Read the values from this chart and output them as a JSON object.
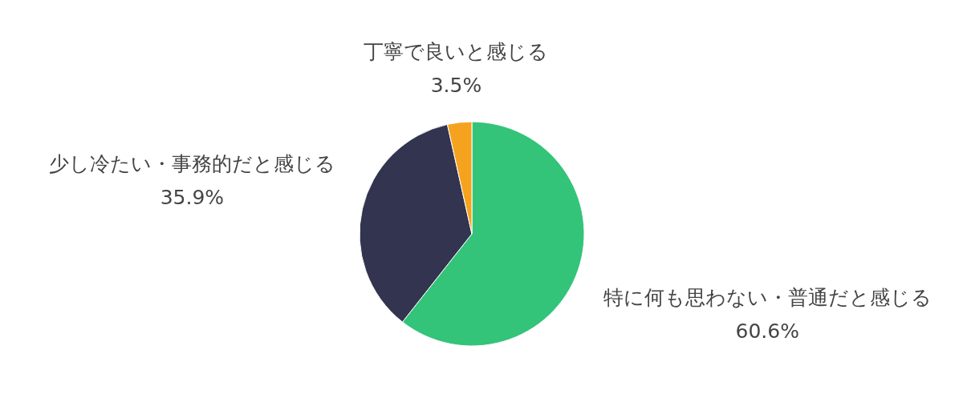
{
  "chart_data": {
    "type": "pie",
    "categories": [
      "特に何も思わない・普通だと感じる",
      "少し冷たい・事務的だと感じる",
      "丁寧で良いと感じる"
    ],
    "values": [
      60.6,
      35.9,
      3.5
    ],
    "colors": [
      "#33c47a",
      "#33344f",
      "#f5a31f"
    ],
    "value_labels": [
      "60.6%",
      "35.9%",
      "3.5%"
    ]
  }
}
